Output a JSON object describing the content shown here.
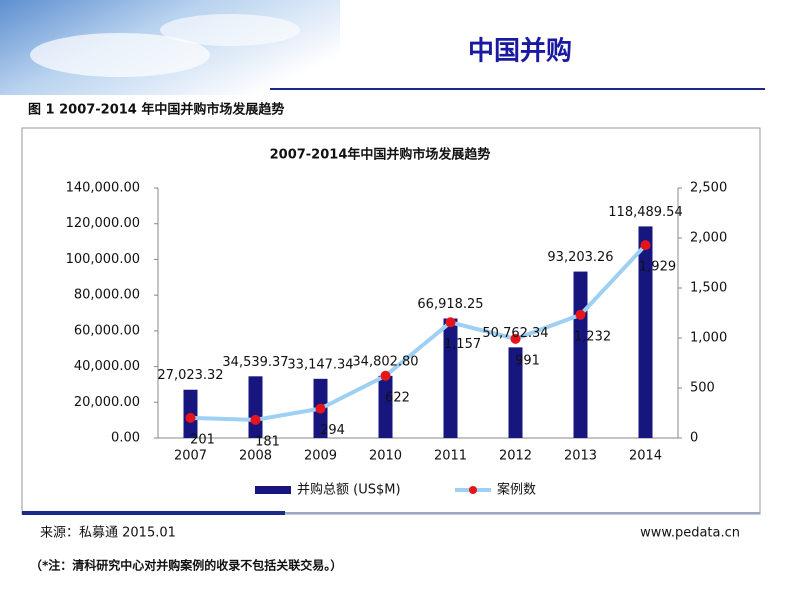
{
  "header": {
    "title": "中国并购"
  },
  "figure_caption": "图 1   2007-2014 年中国并购市场发展趋势",
  "source": "来源：私募通 2015.01",
  "website": "www.pedata.cn",
  "note": "（*注：清科研究中心对并购案例的收录不包括关联交易。）",
  "chart_data": {
    "type": "bar",
    "title": "2007-2014年中国并购市场发展趋势",
    "categories": [
      "2007",
      "2008",
      "2009",
      "2010",
      "2011",
      "2012",
      "2013",
      "2014"
    ],
    "series": [
      {
        "name": "并购总额 (US$M)",
        "color": "#16167e",
        "values": [
          27023.32,
          34539.37,
          33147.34,
          34802.8,
          66918.25,
          50762.34,
          93203.26,
          118489.54
        ],
        "value_labels": [
          "27,023.32",
          "34,539.37",
          "33,147.34",
          "34,802.80",
          "66,918.25",
          "50,762.34",
          "93,203.26",
          "118,489.54"
        ]
      },
      {
        "name": "案例数",
        "type": "line",
        "axis": "y2",
        "color": "#9dd0f3",
        "marker_color": "#e8141c",
        "values": [
          201,
          181,
          294,
          622,
          1157,
          991,
          1232,
          1929
        ],
        "value_labels": [
          "201",
          "181",
          "294",
          "622",
          "1,157",
          "991",
          "1,232",
          "1,929"
        ]
      }
    ],
    "ylim": [
      0,
      140000
    ],
    "yticks": [
      {
        "value": 0,
        "label": "0.00"
      },
      {
        "value": 20000,
        "label": "20,000.00"
      },
      {
        "value": 40000,
        "label": "40,000.00"
      },
      {
        "value": 60000,
        "label": "60,000.00"
      },
      {
        "value": 80000,
        "label": "80,000.00"
      },
      {
        "value": 100000,
        "label": "100,000.00"
      },
      {
        "value": 120000,
        "label": "120,000.00"
      },
      {
        "value": 140000,
        "label": "140,000.00"
      }
    ],
    "y2lim": [
      0,
      2500
    ],
    "y2ticks": [
      0,
      500,
      {
        "value": 1000,
        "label": "1,000"
      },
      {
        "value": 1500,
        "label": "1,500"
      },
      {
        "value": 2000,
        "label": "2,000"
      },
      {
        "value": 2500,
        "label": "2,500"
      }
    ],
    "grid": false,
    "legend": "bottom"
  }
}
